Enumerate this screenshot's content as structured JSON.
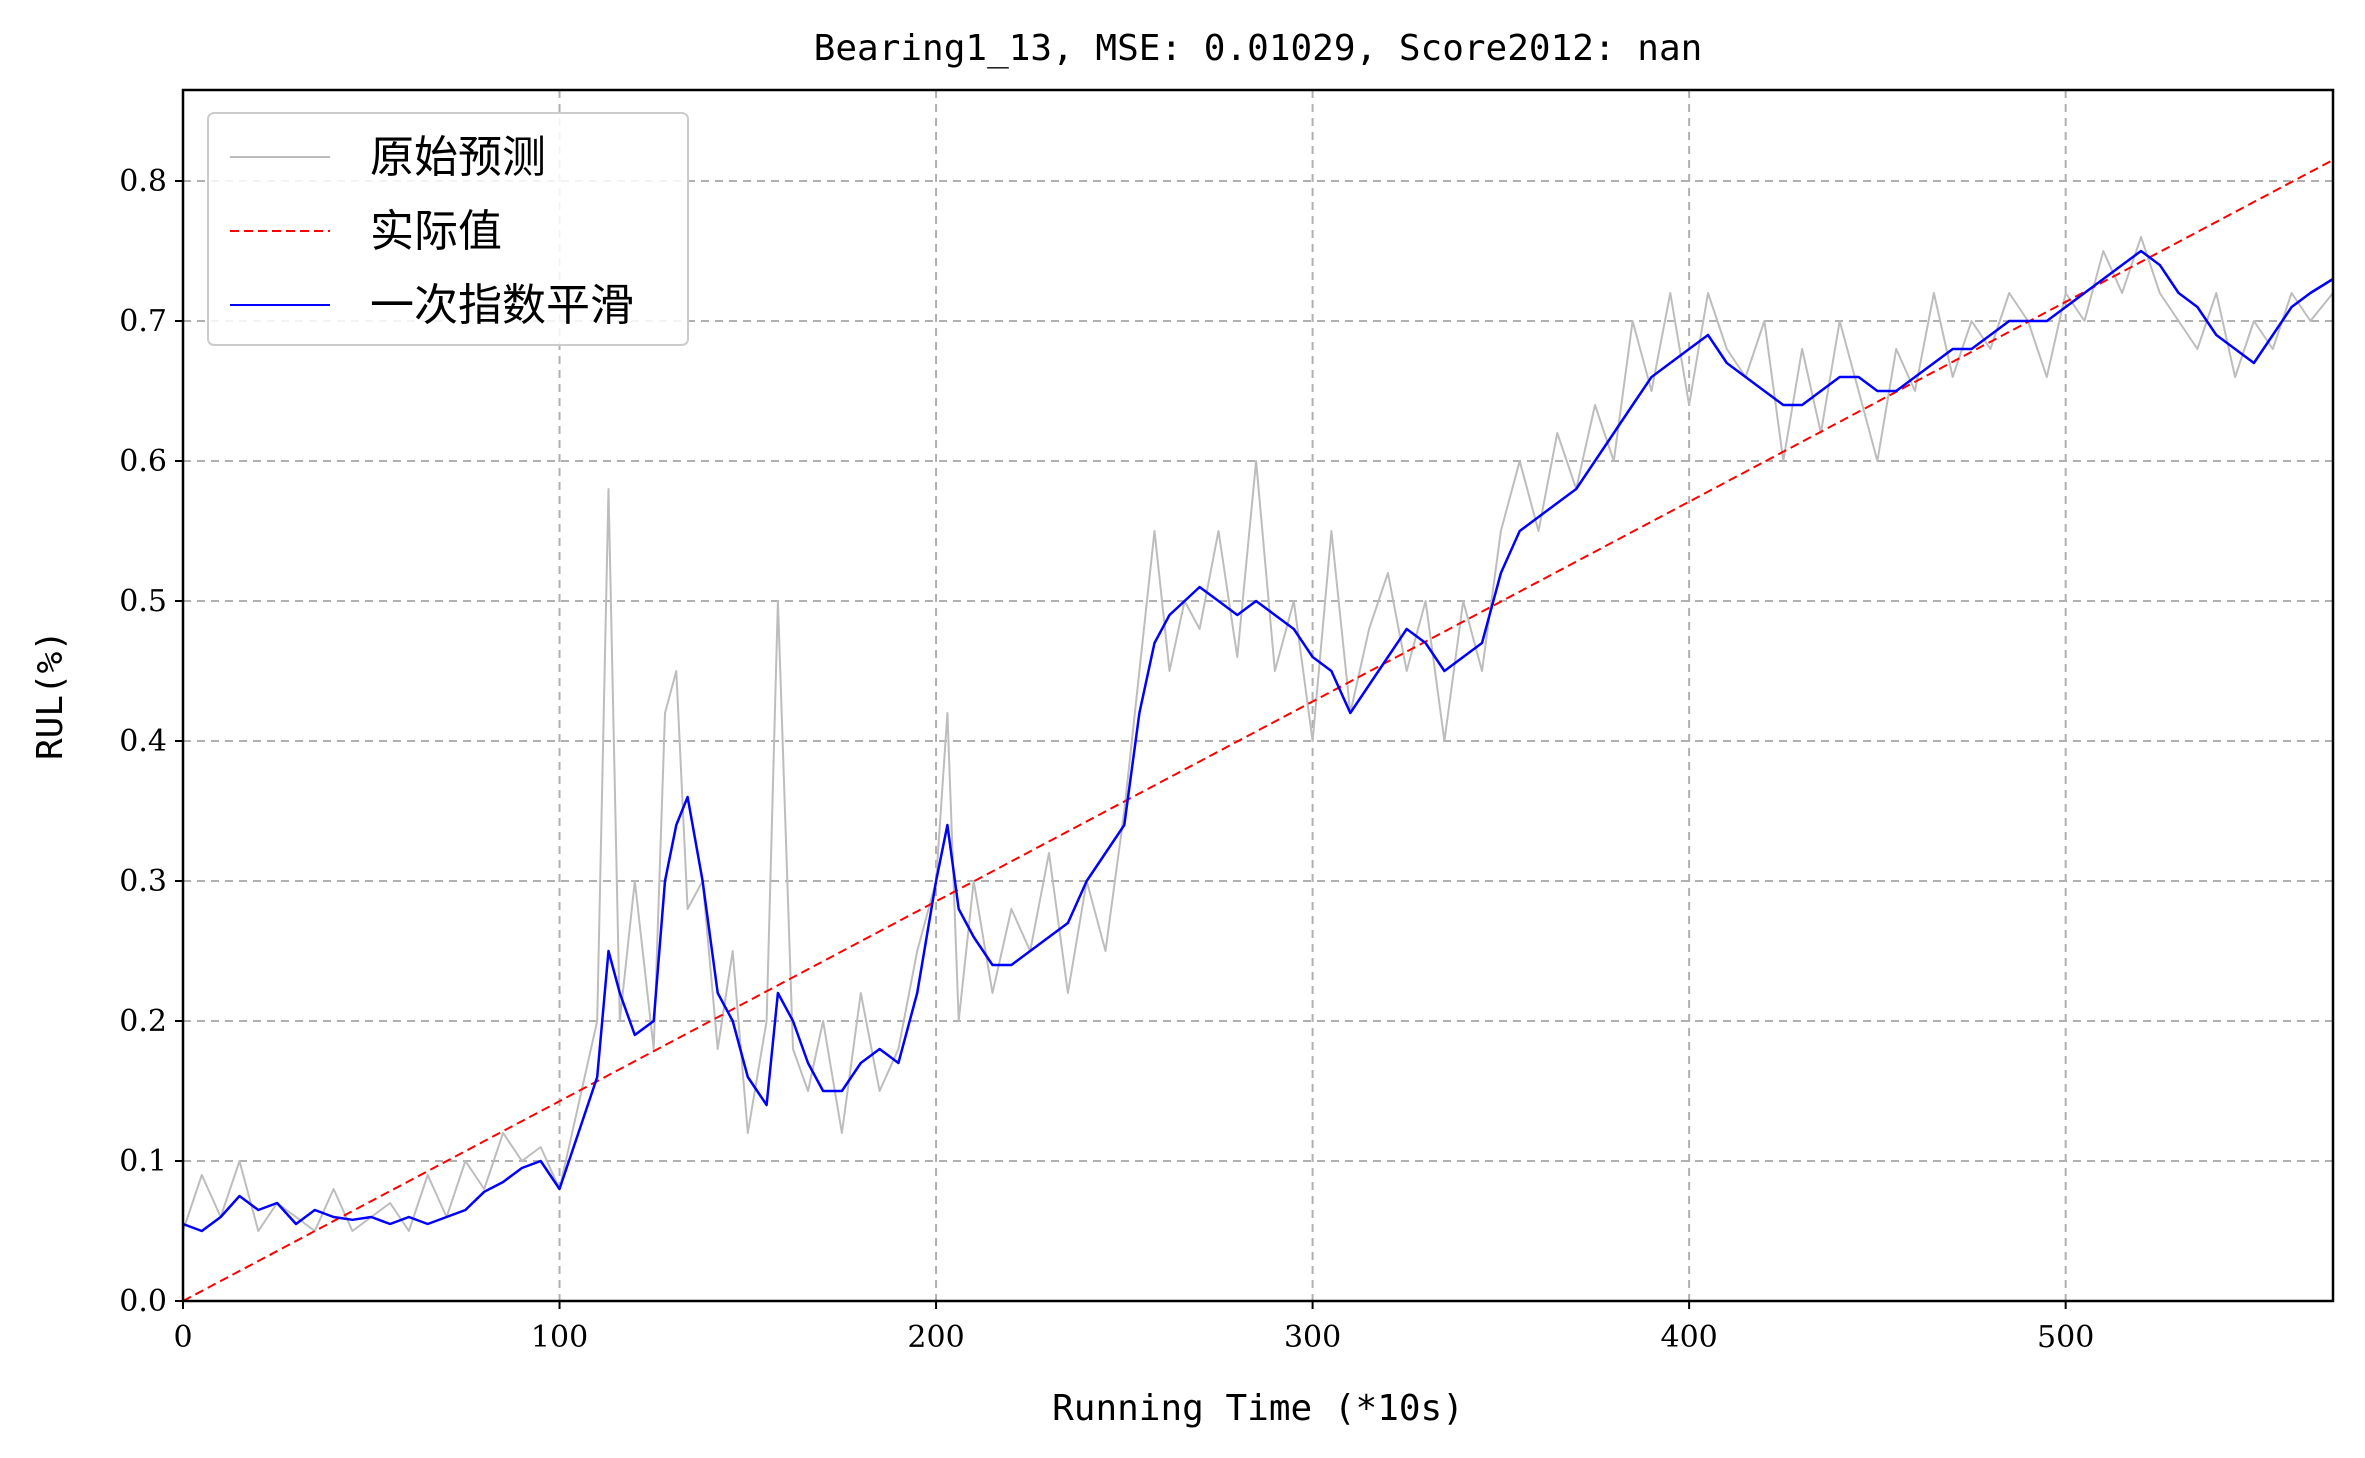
{
  "chart_data": {
    "type": "line",
    "title": "Bearing1_13, MSE: 0.01029, Score2012: nan",
    "xlabel": "Running Time (*10s)",
    "ylabel": "RUL(%)",
    "xlim": [
      0,
      571
    ],
    "ylim": [
      0,
      0.865
    ],
    "xticks": [
      "0",
      "100",
      "200",
      "300",
      "400",
      "500"
    ],
    "yticks": [
      "0.0",
      "0.1",
      "0.2",
      "0.3",
      "0.4",
      "0.5",
      "0.6",
      "0.7",
      "0.8"
    ],
    "grid": true,
    "legend_position": "top-left",
    "series": [
      {
        "name": "原始预测",
        "color": "#bdbdbd",
        "style": "solid",
        "points": [
          [
            0,
            0.05
          ],
          [
            5,
            0.09
          ],
          [
            10,
            0.06
          ],
          [
            15,
            0.1
          ],
          [
            20,
            0.05
          ],
          [
            25,
            0.07
          ],
          [
            30,
            0.06
          ],
          [
            35,
            0.05
          ],
          [
            40,
            0.08
          ],
          [
            45,
            0.05
          ],
          [
            50,
            0.06
          ],
          [
            55,
            0.07
          ],
          [
            60,
            0.05
          ],
          [
            65,
            0.09
          ],
          [
            70,
            0.06
          ],
          [
            75,
            0.1
          ],
          [
            80,
            0.08
          ],
          [
            85,
            0.12
          ],
          [
            90,
            0.1
          ],
          [
            95,
            0.11
          ],
          [
            100,
            0.08
          ],
          [
            105,
            0.14
          ],
          [
            110,
            0.2
          ],
          [
            113,
            0.58
          ],
          [
            116,
            0.2
          ],
          [
            120,
            0.3
          ],
          [
            125,
            0.18
          ],
          [
            128,
            0.42
          ],
          [
            131,
            0.45
          ],
          [
            134,
            0.28
          ],
          [
            138,
            0.3
          ],
          [
            142,
            0.18
          ],
          [
            146,
            0.25
          ],
          [
            150,
            0.12
          ],
          [
            155,
            0.2
          ],
          [
            158,
            0.5
          ],
          [
            162,
            0.18
          ],
          [
            166,
            0.15
          ],
          [
            170,
            0.2
          ],
          [
            175,
            0.12
          ],
          [
            180,
            0.22
          ],
          [
            185,
            0.15
          ],
          [
            190,
            0.18
          ],
          [
            195,
            0.25
          ],
          [
            200,
            0.3
          ],
          [
            203,
            0.42
          ],
          [
            206,
            0.2
          ],
          [
            210,
            0.3
          ],
          [
            215,
            0.22
          ],
          [
            220,
            0.28
          ],
          [
            225,
            0.25
          ],
          [
            230,
            0.32
          ],
          [
            235,
            0.22
          ],
          [
            240,
            0.3
          ],
          [
            245,
            0.25
          ],
          [
            250,
            0.35
          ],
          [
            254,
            0.45
          ],
          [
            258,
            0.55
          ],
          [
            262,
            0.45
          ],
          [
            266,
            0.5
          ],
          [
            270,
            0.48
          ],
          [
            275,
            0.55
          ],
          [
            280,
            0.46
          ],
          [
            285,
            0.6
          ],
          [
            290,
            0.45
          ],
          [
            295,
            0.5
          ],
          [
            300,
            0.4
          ],
          [
            305,
            0.55
          ],
          [
            310,
            0.42
          ],
          [
            315,
            0.48
          ],
          [
            320,
            0.52
          ],
          [
            325,
            0.45
          ],
          [
            330,
            0.5
          ],
          [
            335,
            0.4
          ],
          [
            340,
            0.5
          ],
          [
            345,
            0.45
          ],
          [
            350,
            0.55
          ],
          [
            355,
            0.6
          ],
          [
            360,
            0.55
          ],
          [
            365,
            0.62
          ],
          [
            370,
            0.58
          ],
          [
            375,
            0.64
          ],
          [
            380,
            0.6
          ],
          [
            385,
            0.7
          ],
          [
            390,
            0.65
          ],
          [
            395,
            0.72
          ],
          [
            400,
            0.64
          ],
          [
            405,
            0.72
          ],
          [
            410,
            0.68
          ],
          [
            415,
            0.66
          ],
          [
            420,
            0.7
          ],
          [
            425,
            0.6
          ],
          [
            430,
            0.68
          ],
          [
            435,
            0.62
          ],
          [
            440,
            0.7
          ],
          [
            445,
            0.65
          ],
          [
            450,
            0.6
          ],
          [
            455,
            0.68
          ],
          [
            460,
            0.65
          ],
          [
            465,
            0.72
          ],
          [
            470,
            0.66
          ],
          [
            475,
            0.7
          ],
          [
            480,
            0.68
          ],
          [
            485,
            0.72
          ],
          [
            490,
            0.7
          ],
          [
            495,
            0.66
          ],
          [
            500,
            0.72
          ],
          [
            505,
            0.7
          ],
          [
            510,
            0.75
          ],
          [
            515,
            0.72
          ],
          [
            520,
            0.76
          ],
          [
            525,
            0.72
          ],
          [
            530,
            0.7
          ],
          [
            535,
            0.68
          ],
          [
            540,
            0.72
          ],
          [
            545,
            0.66
          ],
          [
            550,
            0.7
          ],
          [
            555,
            0.68
          ],
          [
            560,
            0.72
          ],
          [
            565,
            0.7
          ],
          [
            571,
            0.72
          ]
        ]
      },
      {
        "name": "实际值",
        "color": "#ff0000",
        "style": "dashed",
        "points": [
          [
            0,
            0.0
          ],
          [
            571,
            0.815
          ]
        ]
      },
      {
        "name": "一次指数平滑",
        "color": "#0000ff",
        "style": "solid",
        "points": [
          [
            0,
            0.055
          ],
          [
            5,
            0.05
          ],
          [
            10,
            0.06
          ],
          [
            15,
            0.075
          ],
          [
            20,
            0.065
          ],
          [
            25,
            0.07
          ],
          [
            30,
            0.055
          ],
          [
            35,
            0.065
          ],
          [
            40,
            0.06
          ],
          [
            45,
            0.058
          ],
          [
            50,
            0.06
          ],
          [
            55,
            0.055
          ],
          [
            60,
            0.06
          ],
          [
            65,
            0.055
          ],
          [
            70,
            0.06
          ],
          [
            75,
            0.065
          ],
          [
            80,
            0.078
          ],
          [
            85,
            0.085
          ],
          [
            90,
            0.095
          ],
          [
            95,
            0.1
          ],
          [
            100,
            0.08
          ],
          [
            105,
            0.12
          ],
          [
            110,
            0.16
          ],
          [
            113,
            0.25
          ],
          [
            116,
            0.22
          ],
          [
            120,
            0.19
          ],
          [
            125,
            0.2
          ],
          [
            128,
            0.3
          ],
          [
            131,
            0.34
          ],
          [
            134,
            0.36
          ],
          [
            138,
            0.3
          ],
          [
            142,
            0.22
          ],
          [
            146,
            0.2
          ],
          [
            150,
            0.16
          ],
          [
            155,
            0.14
          ],
          [
            158,
            0.22
          ],
          [
            162,
            0.2
          ],
          [
            166,
            0.17
          ],
          [
            170,
            0.15
          ],
          [
            175,
            0.15
          ],
          [
            180,
            0.17
          ],
          [
            185,
            0.18
          ],
          [
            190,
            0.17
          ],
          [
            195,
            0.22
          ],
          [
            200,
            0.3
          ],
          [
            203,
            0.34
          ],
          [
            206,
            0.28
          ],
          [
            210,
            0.26
          ],
          [
            215,
            0.24
          ],
          [
            220,
            0.24
          ],
          [
            225,
            0.25
          ],
          [
            230,
            0.26
          ],
          [
            235,
            0.27
          ],
          [
            240,
            0.3
          ],
          [
            245,
            0.32
          ],
          [
            250,
            0.34
          ],
          [
            254,
            0.42
          ],
          [
            258,
            0.47
          ],
          [
            262,
            0.49
          ],
          [
            266,
            0.5
          ],
          [
            270,
            0.51
          ],
          [
            275,
            0.5
          ],
          [
            280,
            0.49
          ],
          [
            285,
            0.5
          ],
          [
            290,
            0.49
          ],
          [
            295,
            0.48
          ],
          [
            300,
            0.46
          ],
          [
            305,
            0.45
          ],
          [
            310,
            0.42
          ],
          [
            315,
            0.44
          ],
          [
            320,
            0.46
          ],
          [
            325,
            0.48
          ],
          [
            330,
            0.47
          ],
          [
            335,
            0.45
          ],
          [
            340,
            0.46
          ],
          [
            345,
            0.47
          ],
          [
            350,
            0.52
          ],
          [
            355,
            0.55
          ],
          [
            360,
            0.56
          ],
          [
            365,
            0.57
          ],
          [
            370,
            0.58
          ],
          [
            375,
            0.6
          ],
          [
            380,
            0.62
          ],
          [
            385,
            0.64
          ],
          [
            390,
            0.66
          ],
          [
            395,
            0.67
          ],
          [
            400,
            0.68
          ],
          [
            405,
            0.69
          ],
          [
            410,
            0.67
          ],
          [
            415,
            0.66
          ],
          [
            420,
            0.65
          ],
          [
            425,
            0.64
          ],
          [
            430,
            0.64
          ],
          [
            435,
            0.65
          ],
          [
            440,
            0.66
          ],
          [
            445,
            0.66
          ],
          [
            450,
            0.65
          ],
          [
            455,
            0.65
          ],
          [
            460,
            0.66
          ],
          [
            465,
            0.67
          ],
          [
            470,
            0.68
          ],
          [
            475,
            0.68
          ],
          [
            480,
            0.69
          ],
          [
            485,
            0.7
          ],
          [
            490,
            0.7
          ],
          [
            495,
            0.7
          ],
          [
            500,
            0.71
          ],
          [
            505,
            0.72
          ],
          [
            510,
            0.73
          ],
          [
            515,
            0.74
          ],
          [
            520,
            0.75
          ],
          [
            525,
            0.74
          ],
          [
            530,
            0.72
          ],
          [
            535,
            0.71
          ],
          [
            540,
            0.69
          ],
          [
            545,
            0.68
          ],
          [
            550,
            0.67
          ],
          [
            555,
            0.69
          ],
          [
            560,
            0.71
          ],
          [
            565,
            0.72
          ],
          [
            571,
            0.73
          ]
        ]
      }
    ]
  }
}
